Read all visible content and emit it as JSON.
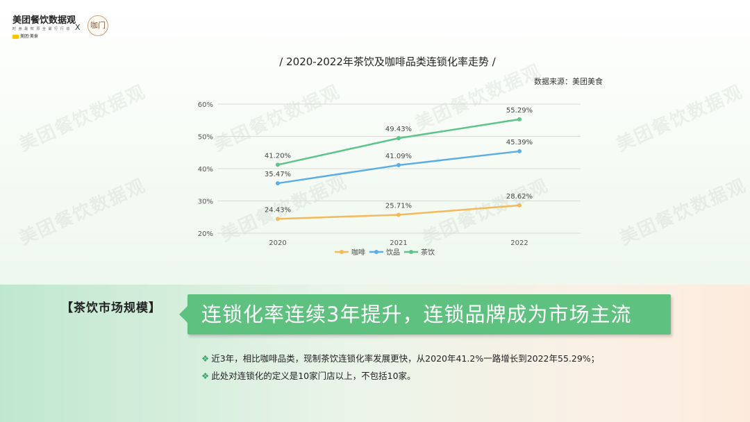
{
  "brand": {
    "name": "美团餐饮数据观",
    "tagline": "时 身 最 权 原 全 最 行 行 动",
    "meituan": "美团·美食",
    "separator": "X",
    "partner_logo_text": "咖门"
  },
  "watermark_text": "美团餐饮数据观",
  "chart_data": {
    "type": "line",
    "title": "/ 2020-2022年茶饮及咖啡品类连锁化率走势 /",
    "source": "数据来源：美团美食",
    "categories": [
      "2020",
      "2021",
      "2022"
    ],
    "ylim": [
      20,
      60
    ],
    "yticks": [
      20,
      30,
      40,
      50,
      60
    ],
    "ytick_labels": [
      "20%",
      "30%",
      "40%",
      "50%",
      "60%"
    ],
    "grid": true,
    "legend_position": "bottom",
    "series": [
      {
        "name": "咖啡",
        "color": "#f5b85a",
        "values": [
          24.43,
          25.71,
          28.62
        ],
        "labels": [
          "24.43%",
          "25.71%",
          "28.62%"
        ]
      },
      {
        "name": "饮品",
        "color": "#5aaee5",
        "values": [
          35.47,
          41.09,
          45.39
        ],
        "labels": [
          "35.47%",
          "41.09%",
          "45.39%"
        ]
      },
      {
        "name": "茶饮",
        "color": "#5bc58a",
        "values": [
          41.2,
          49.43,
          55.29
        ],
        "labels": [
          "41.20%",
          "49.43%",
          "55.29%"
        ]
      }
    ]
  },
  "section": {
    "label": "【茶饮市场规模】",
    "headline": "连锁化率连续3年提升，连锁品牌成为市场主流",
    "bullet_mark": "❖",
    "bullets": [
      "近3年，相比咖啡品类，现制茶饮连锁化率发展更快，从2020年41.2%一路增长到2022年55.29%；",
      "此处对连锁化的定义是10家门店以上，不包括10家。"
    ]
  }
}
